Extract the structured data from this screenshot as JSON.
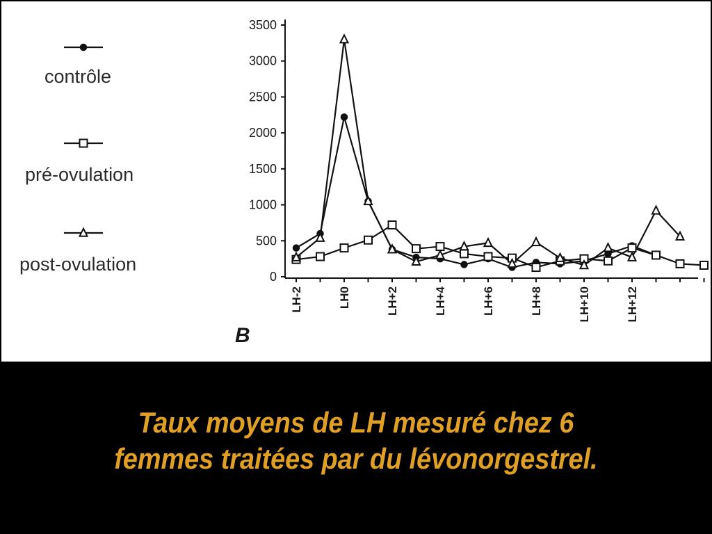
{
  "slide": {
    "caption_line1": "Taux moyens de LH mesuré chez 6",
    "caption_line2": "femmes traitées par du lévonorgestrel.",
    "caption_color": "#e0a026",
    "background": "#000000",
    "panel_background": "#ffffff"
  },
  "chart_data": {
    "type": "line",
    "panel_label": "B",
    "title": "",
    "xlabel": "",
    "ylabel": "",
    "ylim": [
      0,
      3500
    ],
    "yticks": [
      0,
      500,
      1000,
      1500,
      2000,
      2500,
      3000,
      3500
    ],
    "x": [
      -2,
      -1,
      0,
      1,
      2,
      3,
      4,
      5,
      6,
      7,
      8,
      9,
      10,
      11,
      12,
      13,
      14,
      15
    ],
    "xlim": [
      -2,
      15
    ],
    "xtick_labels": [
      {
        "x": -2,
        "label": "LH-2"
      },
      {
        "x": 0,
        "label": "LH0"
      },
      {
        "x": 2,
        "label": "LH+2"
      },
      {
        "x": 4,
        "label": "LH+4"
      },
      {
        "x": 6,
        "label": "LH+6"
      },
      {
        "x": 8,
        "label": "LH+8"
      },
      {
        "x": 10,
        "label": "LH+10"
      },
      {
        "x": 12,
        "label": "LH+12"
      }
    ],
    "legend_position": "left",
    "series": [
      {
        "name": "contrôle",
        "marker": "circle",
        "x": [
          -2,
          -1,
          0,
          1,
          2,
          3,
          4,
          5,
          6,
          7,
          8,
          9,
          10,
          11,
          12,
          13
        ],
        "values": [
          400,
          600,
          2220,
          1050,
          380,
          270,
          250,
          170,
          250,
          130,
          200,
          180,
          220,
          320,
          430,
          300
        ]
      },
      {
        "name": "pré-ovulation",
        "marker": "square",
        "x": [
          -2,
          -1,
          0,
          1,
          2,
          3,
          4,
          5,
          6,
          7,
          8,
          9,
          10,
          11,
          12,
          13,
          14,
          15
        ],
        "values": [
          240,
          280,
          400,
          510,
          720,
          390,
          420,
          320,
          280,
          260,
          130,
          220,
          250,
          220,
          400,
          300,
          180,
          160
        ]
      },
      {
        "name": "post-ovulation",
        "marker": "triangle",
        "x": [
          -2,
          -1,
          0,
          1,
          2,
          3,
          4,
          5,
          6,
          7,
          8,
          9,
          10,
          11,
          12,
          13,
          14
        ],
        "values": [
          270,
          540,
          3300,
          1050,
          380,
          210,
          300,
          420,
          470,
          180,
          480,
          260,
          160,
          400,
          270,
          920,
          560
        ]
      }
    ]
  }
}
